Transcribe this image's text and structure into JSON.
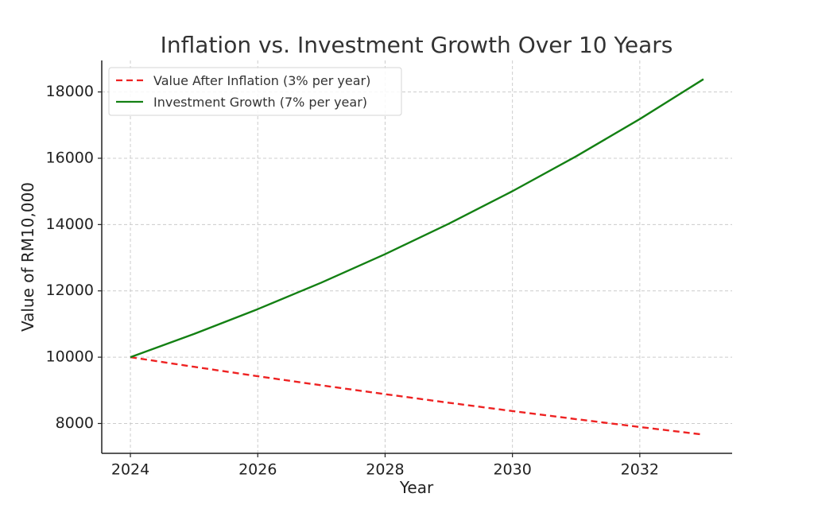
{
  "chart_data": {
    "type": "line",
    "title": "Inflation vs. Investment Growth Over 10 Years",
    "xlabel": "Year",
    "ylabel": "Value of RM10,000",
    "x": [
      2024,
      2025,
      2026,
      2027,
      2028,
      2029,
      2030,
      2031,
      2032,
      2033
    ],
    "xticks": [
      2024,
      2026,
      2028,
      2030,
      2032
    ],
    "yticks": [
      8000,
      10000,
      12000,
      14000,
      16000,
      18000
    ],
    "xlim": [
      2023.55,
      2033.45
    ],
    "ylim": [
      7100,
      18950
    ],
    "grid": true,
    "legend_position": "top-left",
    "series": [
      {
        "name": "Value After Inflation (3% per year)",
        "color": "#ee2222",
        "style": "dashed",
        "values": [
          10000,
          9709,
          9426,
          9151,
          8885,
          8626,
          8375,
          8131,
          7894,
          7664
        ]
      },
      {
        "name": "Investment Growth (7% per year)",
        "color": "#138013",
        "style": "solid",
        "values": [
          10000,
          10700,
          11449,
          12250,
          13108,
          14026,
          15007,
          16058,
          17182,
          18385
        ]
      }
    ]
  }
}
